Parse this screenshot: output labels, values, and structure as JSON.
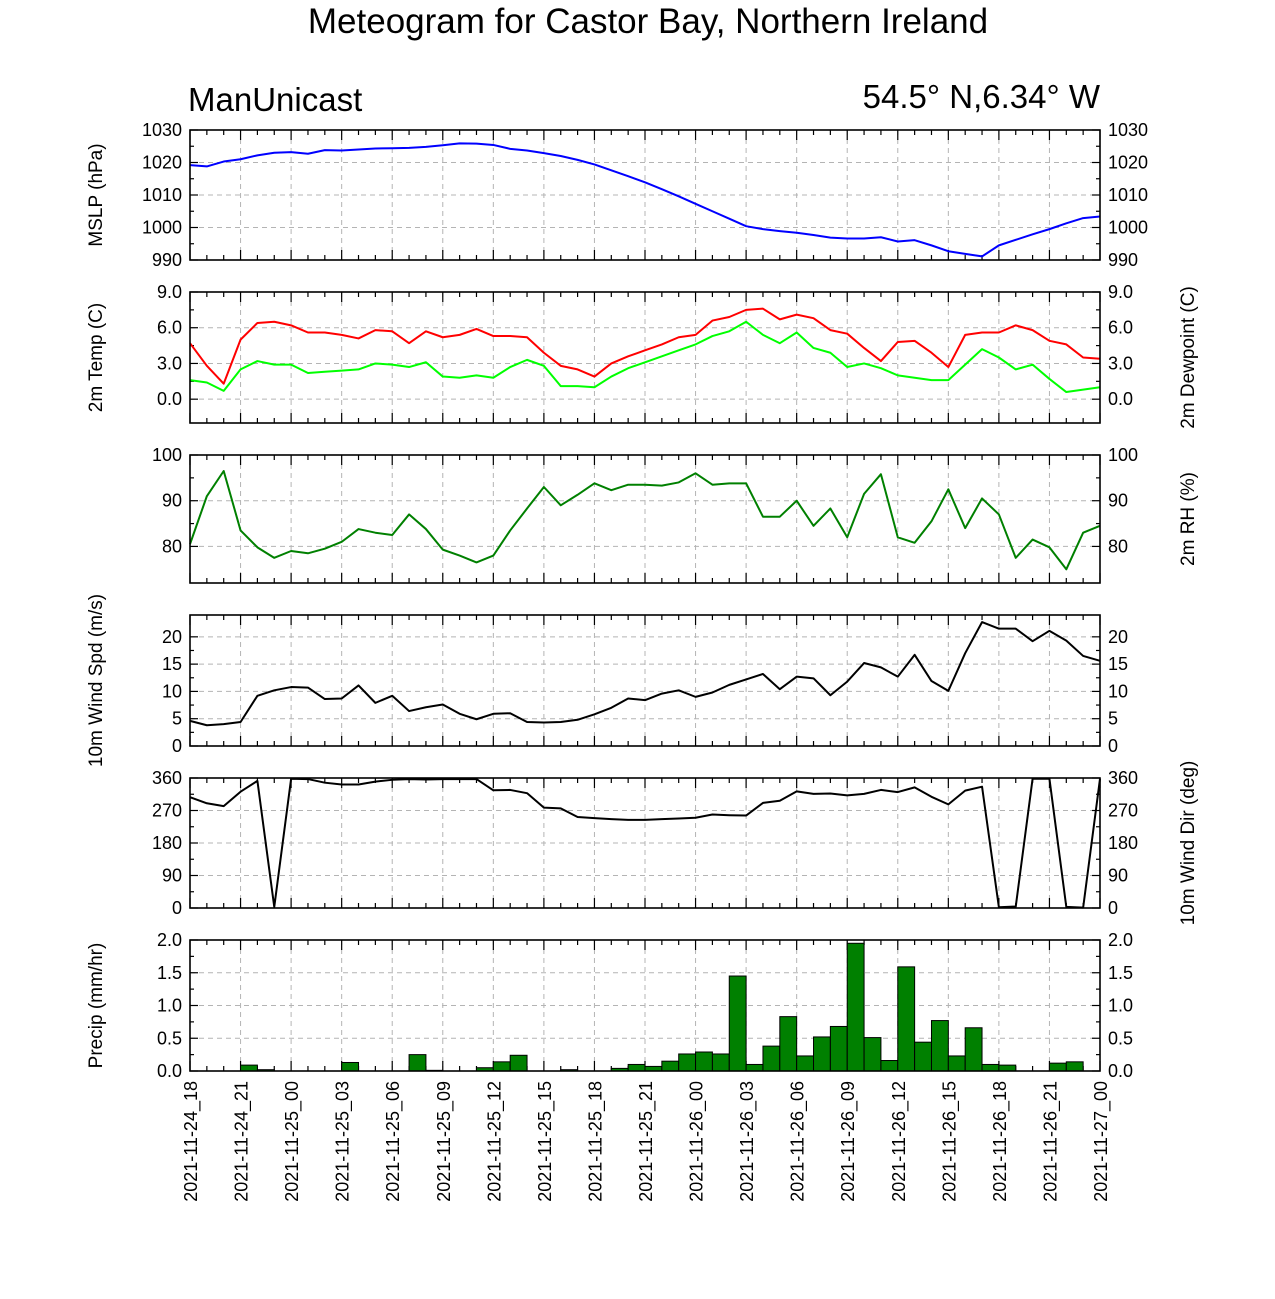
{
  "page": {
    "title": "Meteogram for Castor Bay, Northern Ireland",
    "model": "ManUnicast",
    "location": "54.5° N,6.34° W"
  },
  "chart_data": {
    "type": "line",
    "x_range": [
      "2021-11-24 18:00",
      "2021-11-27 00:00"
    ],
    "x_tick_labels": [
      "2021-11-24_18",
      "2021-11-24_21",
      "2021-11-25_00",
      "2021-11-25_03",
      "2021-11-25_06",
      "2021-11-25_09",
      "2021-11-25_12",
      "2021-11-25_15",
      "2021-11-25_18",
      "2021-11-25_21",
      "2021-11-26_00",
      "2021-11-26_03",
      "2021-11-26_06",
      "2021-11-26_09",
      "2021-11-26_12",
      "2021-11-26_15",
      "2021-11-26_18",
      "2021-11-26_21",
      "2021-11-27_00"
    ],
    "panels": [
      {
        "id": "mslp",
        "ylabel_left": "MSLP (hPa)",
        "ylabel_right": "",
        "ylim": [
          990,
          1030
        ],
        "yticks": [
          990,
          1000,
          1010,
          1020,
          1030
        ],
        "tick_decimals": 0,
        "series": [
          {
            "color": "#0000ff",
            "values": [
              1019.2,
              1018.8,
              1020.3,
              1021.0,
              1022.2,
              1023.0,
              1023.2,
              1022.7,
              1023.8,
              1023.7,
              1024.0,
              1024.3,
              1024.4,
              1024.5,
              1024.8,
              1025.3,
              1025.9,
              1025.8,
              1025.4,
              1024.2,
              1023.7,
              1022.9,
              1022.0,
              1020.8,
              1019.4,
              1017.6,
              1015.8,
              1013.9,
              1011.8,
              1009.6,
              1007.3,
              1005.0,
              1002.7,
              1000.4,
              999.5,
              998.9,
              998.4,
              997.7,
              996.9,
              996.6,
              996.6,
              997.0,
              995.7,
              996.1,
              994.5,
              992.7,
              991.9,
              991.1,
              994.5,
              996.2,
              997.9,
              999.5,
              1001.3,
              1002.9,
              1003.4
            ]
          }
        ]
      },
      {
        "id": "temp",
        "ylabel_left": "2m Temp (C)",
        "ylabel_right": "2m Dewpoint (C)",
        "ylim": [
          -2,
          9
        ],
        "yticks": [
          0,
          3,
          6,
          9
        ],
        "tick_decimals": 1,
        "series": [
          {
            "color": "#ff0000",
            "values": [
              4.7,
              2.8,
              1.3,
              5.0,
              6.4,
              6.5,
              6.2,
              5.6,
              5.6,
              5.4,
              5.1,
              5.8,
              5.7,
              4.7,
              5.7,
              5.2,
              5.4,
              5.9,
              5.3,
              5.3,
              5.2,
              3.9,
              2.8,
              2.5,
              1.9,
              3.0,
              3.6,
              4.1,
              4.6,
              5.2,
              5.4,
              6.6,
              6.9,
              7.5,
              7.6,
              6.7,
              7.1,
              6.8,
              5.8,
              5.5,
              4.3,
              3.2,
              4.8,
              4.9,
              3.9,
              2.7,
              5.4,
              5.6,
              5.6,
              6.2,
              5.8,
              4.9,
              4.6,
              3.5,
              3.4
            ]
          },
          {
            "color": "#00ff00",
            "values": [
              1.6,
              1.4,
              0.7,
              2.5,
              3.2,
              2.9,
              2.9,
              2.2,
              2.3,
              2.4,
              2.5,
              3.0,
              2.9,
              2.7,
              3.1,
              1.9,
              1.8,
              2.0,
              1.8,
              2.7,
              3.3,
              2.8,
              1.1,
              1.1,
              1.0,
              1.9,
              2.6,
              3.1,
              3.6,
              4.1,
              4.6,
              5.3,
              5.7,
              6.5,
              5.4,
              4.7,
              5.6,
              4.3,
              3.9,
              2.7,
              3.0,
              2.6,
              2.0,
              1.8,
              1.6,
              1.6,
              2.9,
              4.2,
              3.5,
              2.5,
              2.9,
              1.7,
              0.6,
              0.8,
              1.0
            ]
          }
        ]
      },
      {
        "id": "rh",
        "ylabel_left": "",
        "ylabel_right": "2m RH (%)",
        "ylim": [
          72,
          100
        ],
        "yticks": [
          80,
          90,
          100
        ],
        "tick_decimals": 0,
        "series": [
          {
            "color": "#008000",
            "values": [
              80.5,
              91.0,
              96.5,
              83.5,
              79.8,
              77.5,
              79.0,
              78.5,
              79.5,
              81.0,
              83.8,
              83.0,
              82.5,
              87.0,
              83.8,
              79.3,
              78.0,
              76.5,
              78.0,
              83.5,
              88.3,
              93.0,
              89.0,
              91.3,
              93.8,
              92.3,
              93.5,
              93.5,
              93.3,
              94.0,
              96.0,
              93.5,
              93.8,
              93.8,
              86.5,
              86.5,
              90.0,
              84.5,
              88.3,
              82.0,
              91.5,
              95.8,
              82.0,
              80.8,
              85.5,
              92.5,
              84.0,
              90.5,
              87.0,
              77.5,
              81.5,
              79.8,
              75.0,
              83.0,
              84.5
            ]
          }
        ]
      },
      {
        "id": "wspd",
        "ylabel_left": "10m Wind Spd (m/s)",
        "ylabel_right": "",
        "ylim": [
          0,
          24
        ],
        "yticks": [
          0,
          5,
          10,
          15,
          20
        ],
        "tick_decimals": 0,
        "series": [
          {
            "color": "#000000",
            "values": [
              4.6,
              3.8,
              4.0,
              4.4,
              9.2,
              10.2,
              10.8,
              10.7,
              8.6,
              8.7,
              11.1,
              7.9,
              9.2,
              6.4,
              7.1,
              7.6,
              5.9,
              4.9,
              5.9,
              6.0,
              4.4,
              4.3,
              4.4,
              4.8,
              5.8,
              7.0,
              8.7,
              8.4,
              9.6,
              10.2,
              9.0,
              9.8,
              11.2,
              12.2,
              13.2,
              10.4,
              12.7,
              12.4,
              9.3,
              11.8,
              15.2,
              14.4,
              12.7,
              16.7,
              11.9,
              10.1,
              17.0,
              22.7,
              21.5,
              21.5,
              19.2,
              21.1,
              19.3,
              16.5,
              15.6
            ]
          }
        ]
      },
      {
        "id": "wdir",
        "ylabel_left": "",
        "ylabel_right": "10m Wind Dir (deg)",
        "ylim": [
          0,
          360
        ],
        "yticks": [
          0,
          90,
          180,
          270,
          360
        ],
        "tick_decimals": 0,
        "series": [
          {
            "color": "#000000",
            "values": [
              307,
              290,
              282,
              322,
              352,
              3,
              358,
              357,
              347,
              342,
              342,
              350,
              355,
              357,
              356,
              357,
              357,
              357,
              326,
              327,
              318,
              278,
              276,
              252,
              249,
              246,
              244,
              244,
              246,
              248,
              250,
              259,
              257,
              256,
              291,
              297,
              323,
              316,
              317,
              312,
              316,
              327,
              321,
              334,
              308,
              287,
              325,
              336,
              2,
              4,
              358,
              358,
              3,
              1,
              358
            ]
          }
        ]
      },
      {
        "id": "precip",
        "type": "bar",
        "ylabel_left": "Precip (mm/hr)",
        "ylabel_right": "",
        "ylim": [
          0,
          2.0
        ],
        "yticks": [
          0,
          0.5,
          1.0,
          1.5,
          2.0
        ],
        "tick_decimals": 1,
        "series": [
          {
            "color": "#008000",
            "values": [
              0,
              0,
              0,
              0.09,
              0.02,
              0,
              0,
              0,
              0,
              0.13,
              0,
              0,
              0,
              0.25,
              0.01,
              0,
              0,
              0.05,
              0.14,
              0.24,
              0,
              0,
              0.02,
              0,
              0,
              0.04,
              0.1,
              0.07,
              0.15,
              0.26,
              0.29,
              0.26,
              1.45,
              0.1,
              0.38,
              0.83,
              0.23,
              0.52,
              0.68,
              1.95,
              0.51,
              0.16,
              1.59,
              0.44,
              0.77,
              0.23,
              0.66,
              0.1,
              0.09,
              0,
              0,
              0.12,
              0.14
            ]
          }
        ]
      }
    ]
  }
}
